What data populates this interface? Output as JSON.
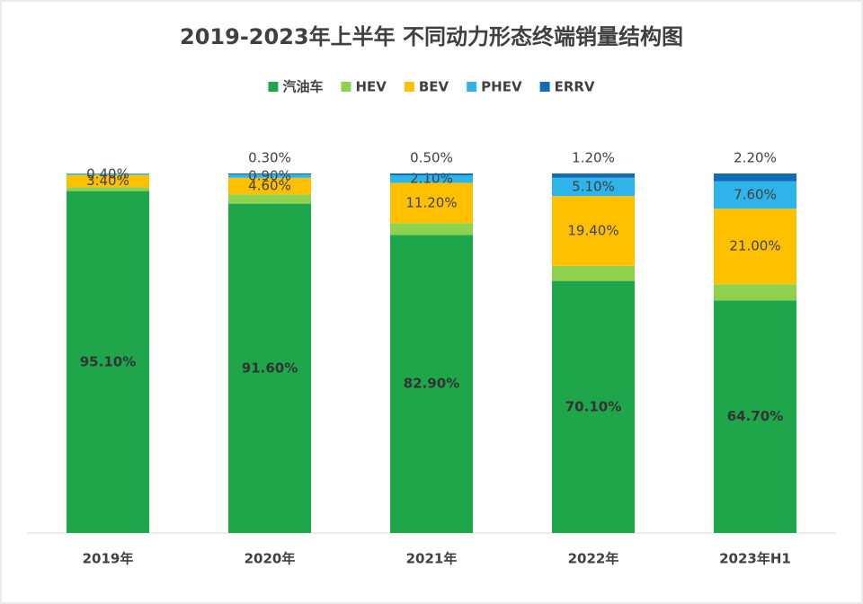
{
  "chart_data": {
    "type": "bar",
    "stacked": true,
    "title": "2019-2023年上半年 不同动力形态终端销量结构图",
    "categories": [
      "2019年",
      "2020年",
      "2021年",
      "2022年",
      "2023年H1"
    ],
    "ylim": [
      0,
      100
    ],
    "legend": "top",
    "series": [
      {
        "name": "汽油车",
        "color": "#1fa64b",
        "values": [
          95.1,
          91.6,
          82.9,
          70.1,
          64.7
        ],
        "value_labels": [
          "95.10%",
          "91.60%",
          "82.90%",
          "70.10%",
          "64.70%"
        ]
      },
      {
        "name": "HEV",
        "color": "#8ed14f",
        "values": [
          1.1,
          2.6,
          3.3,
          4.2,
          4.5
        ]
      },
      {
        "name": "BEV",
        "color": "#ffc000",
        "values": [
          3.4,
          4.6,
          11.2,
          19.4,
          21.0
        ],
        "value_labels": [
          "3.40%",
          "4.60%",
          "11.20%",
          "19.40%",
          "21.00%"
        ]
      },
      {
        "name": "PHEV",
        "color": "#2fb4e9",
        "values": [
          0.4,
          0.9,
          2.1,
          5.1,
          7.6
        ],
        "value_labels": [
          "0.40%",
          "0.90%",
          "2.10%",
          "5.10%",
          "7.60%"
        ]
      },
      {
        "name": "ERRV",
        "color": "#0f6cb6",
        "values": [
          0,
          0.3,
          0.5,
          1.2,
          2.2
        ],
        "value_labels": [
          null,
          "0.30%",
          "0.50%",
          "1.20%",
          "2.20%"
        ]
      }
    ]
  }
}
